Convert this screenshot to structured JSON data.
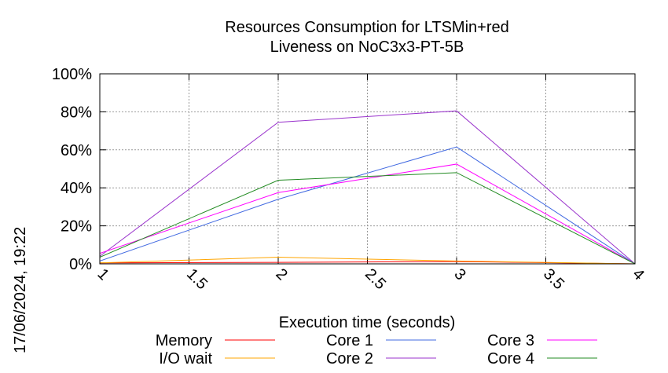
{
  "chart_data": {
    "type": "line",
    "title": [
      "Resources Consumption for LTSMin+red",
      "Liveness on NoC3x3-PT-5B"
    ],
    "xlabel": "Execution time (seconds)",
    "ylabel": "",
    "timestamp": "17/06/2024, 19:22",
    "xlim": [
      1,
      4
    ],
    "ylim": [
      0,
      100
    ],
    "xticks": [
      "1",
      "1.5",
      "2",
      "2.5",
      "3",
      "3.5",
      "4"
    ],
    "xtick_values": [
      1,
      1.5,
      2,
      2.5,
      3,
      3.5,
      4
    ],
    "yticks": [
      "0%",
      "20%",
      "40%",
      "60%",
      "80%",
      "100%"
    ],
    "ytick_values": [
      0,
      20,
      40,
      60,
      80,
      100
    ],
    "grid": true,
    "legend_position": "bottom",
    "x": [
      1,
      2,
      3,
      4
    ],
    "series": [
      {
        "name": "Memory",
        "color": "#ff0000",
        "values": [
          0.5,
          0.8,
          1.2,
          0
        ]
      },
      {
        "name": "I/O wait",
        "color": "#ffa500",
        "values": [
          0.5,
          3.5,
          1.5,
          0
        ]
      },
      {
        "name": "Core 1",
        "color": "#4169e1",
        "values": [
          1.5,
          34,
          61.5,
          0
        ]
      },
      {
        "name": "Core 2",
        "color": "#9932cc",
        "values": [
          4,
          74.5,
          80.5,
          0
        ]
      },
      {
        "name": "Core 3",
        "color": "#ff00ff",
        "values": [
          5.5,
          37.5,
          52.5,
          0
        ]
      },
      {
        "name": "Core 4",
        "color": "#228b22",
        "values": [
          3.5,
          44,
          48,
          0
        ]
      }
    ]
  }
}
